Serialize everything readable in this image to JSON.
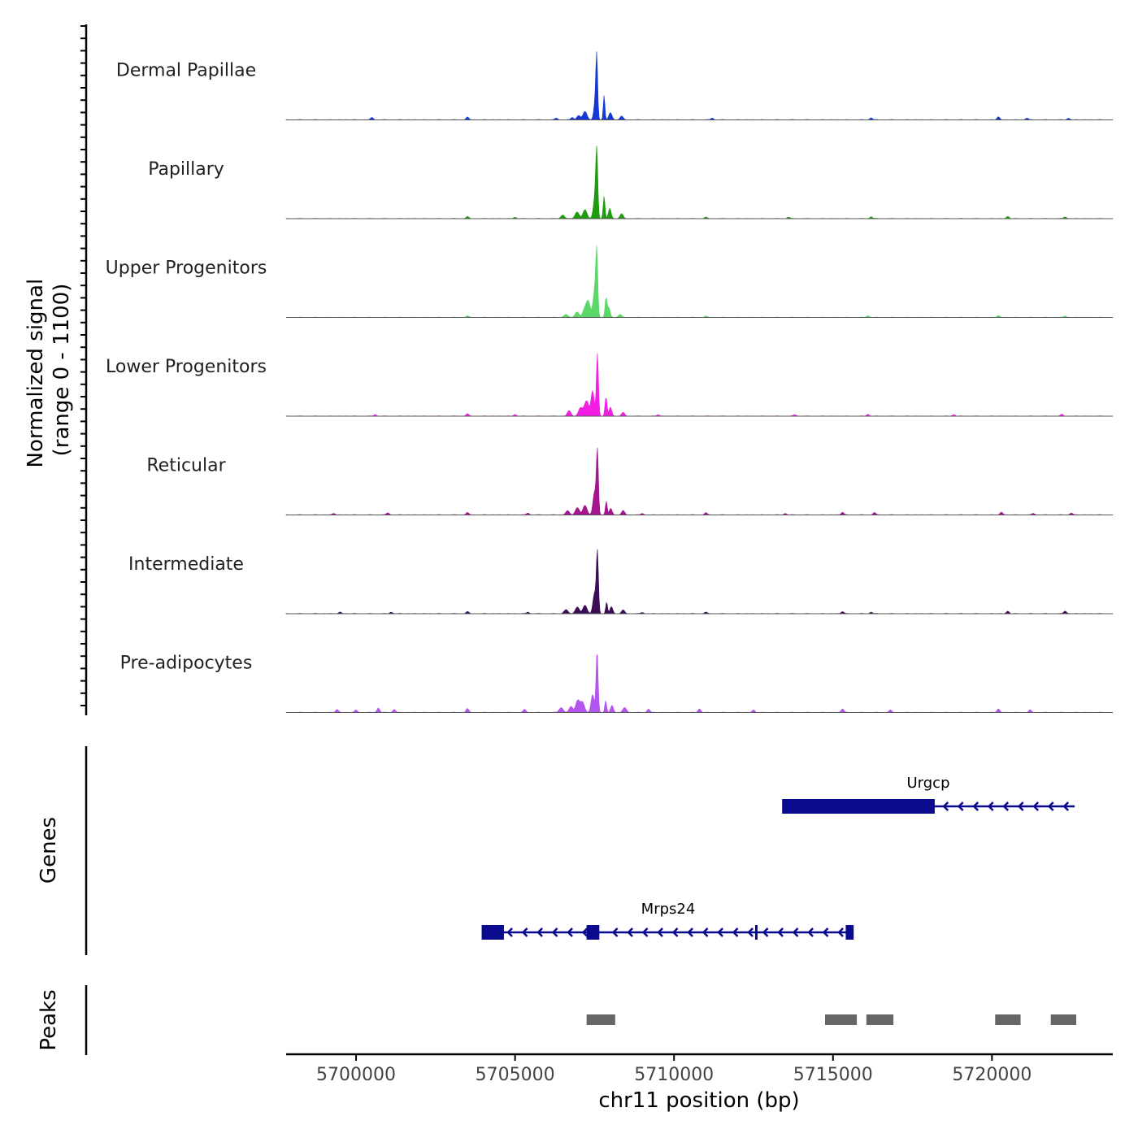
{
  "chart_data": {
    "type": "area",
    "title": "",
    "signal_axis_label": "Normalized signal\n(range 0 - 1100)",
    "signal_range": [
      0,
      1100
    ],
    "xlabel": "chr11 position (bp)",
    "xlim": [
      5697800,
      5723800
    ],
    "x_ticks": [
      5700000,
      5705000,
      5710000,
      5715000,
      5720000
    ],
    "x_tick_labels": [
      "5700000",
      "5705000",
      "5710000",
      "5715000",
      "5720000"
    ],
    "tracks": [
      {
        "name": "Dermal Papillae",
        "color": "#1538d6",
        "peaks": [
          [
            5707570,
            1000,
            40
          ],
          [
            5707520,
            300,
            60
          ],
          [
            5707800,
            420,
            35
          ],
          [
            5707200,
            140,
            90
          ],
          [
            5708000,
            120,
            70
          ],
          [
            5707000,
            70,
            80
          ],
          [
            5708350,
            60,
            70
          ],
          [
            5706800,
            40,
            60
          ]
        ],
        "noise": [
          [
            5700500,
            40
          ],
          [
            5703500,
            45
          ],
          [
            5706300,
            30
          ],
          [
            5711200,
            30
          ],
          [
            5716200,
            35
          ],
          [
            5720200,
            50
          ],
          [
            5721100,
            30
          ],
          [
            5722400,
            25
          ]
        ]
      },
      {
        "name": "Papillary",
        "color": "#1f9b0f",
        "peaks": [
          [
            5707570,
            1070,
            45
          ],
          [
            5707510,
            330,
            70
          ],
          [
            5707800,
            380,
            40
          ],
          [
            5707200,
            150,
            90
          ],
          [
            5707980,
            170,
            60
          ],
          [
            5706950,
            110,
            90
          ],
          [
            5708350,
            80,
            70
          ],
          [
            5706500,
            60,
            80
          ]
        ],
        "noise": [
          [
            5703500,
            35
          ],
          [
            5705000,
            20
          ],
          [
            5711000,
            25
          ],
          [
            5713600,
            25
          ],
          [
            5716200,
            30
          ],
          [
            5720500,
            35
          ],
          [
            5722300,
            30
          ]
        ]
      },
      {
        "name": "Upper Progenitors",
        "color": "#5ad86a",
        "peaks": [
          [
            5707570,
            1050,
            45
          ],
          [
            5707500,
            420,
            70
          ],
          [
            5707860,
            320,
            45
          ],
          [
            5707300,
            280,
            90
          ],
          [
            5707180,
            120,
            80
          ],
          [
            5707950,
            160,
            60
          ],
          [
            5706950,
            90,
            90
          ],
          [
            5708300,
            50,
            70
          ],
          [
            5706600,
            50,
            80
          ]
        ],
        "noise": [
          [
            5703500,
            25
          ],
          [
            5711000,
            20
          ],
          [
            5716100,
            25
          ],
          [
            5720200,
            30
          ],
          [
            5722300,
            25
          ]
        ]
      },
      {
        "name": "Lower Progenitors",
        "color": "#f21ee4",
        "peaks": [
          [
            5707590,
            1060,
            45
          ],
          [
            5707440,
            420,
            70
          ],
          [
            5707860,
            320,
            45
          ],
          [
            5707250,
            260,
            100
          ],
          [
            5707060,
            140,
            90
          ],
          [
            5708000,
            150,
            60
          ],
          [
            5706700,
            90,
            80
          ],
          [
            5708400,
            60,
            70
          ]
        ],
        "noise": [
          [
            5700600,
            25
          ],
          [
            5703500,
            40
          ],
          [
            5705000,
            25
          ],
          [
            5709500,
            25
          ],
          [
            5713800,
            25
          ],
          [
            5716100,
            30
          ],
          [
            5718800,
            25
          ],
          [
            5722200,
            30
          ]
        ]
      },
      {
        "name": "Reticular",
        "color": "#a4158f",
        "peaks": [
          [
            5707590,
            1070,
            45
          ],
          [
            5707500,
            380,
            70
          ],
          [
            5707870,
            230,
            40
          ],
          [
            5707200,
            160,
            90
          ],
          [
            5706960,
            120,
            90
          ],
          [
            5708010,
            110,
            60
          ],
          [
            5706650,
            70,
            80
          ],
          [
            5708400,
            70,
            70
          ]
        ],
        "noise": [
          [
            5699300,
            25
          ],
          [
            5701000,
            35
          ],
          [
            5703500,
            40
          ],
          [
            5705400,
            30
          ],
          [
            5709000,
            25
          ],
          [
            5711000,
            35
          ],
          [
            5713500,
            25
          ],
          [
            5715300,
            45
          ],
          [
            5716300,
            40
          ],
          [
            5720300,
            45
          ],
          [
            5721300,
            25
          ],
          [
            5722500,
            30
          ]
        ]
      },
      {
        "name": "Intermediate",
        "color": "#3a0d56",
        "peaks": [
          [
            5707590,
            1030,
            45
          ],
          [
            5707500,
            340,
            70
          ],
          [
            5707880,
            190,
            40
          ],
          [
            5707200,
            140,
            90
          ],
          [
            5706960,
            110,
            90
          ],
          [
            5708030,
            120,
            60
          ],
          [
            5706600,
            70,
            80
          ],
          [
            5708400,
            60,
            70
          ]
        ],
        "noise": [
          [
            5699500,
            25
          ],
          [
            5701100,
            25
          ],
          [
            5703500,
            35
          ],
          [
            5705400,
            25
          ],
          [
            5709000,
            20
          ],
          [
            5711000,
            25
          ],
          [
            5715300,
            35
          ],
          [
            5716200,
            25
          ],
          [
            5720500,
            40
          ],
          [
            5722300,
            45
          ]
        ]
      },
      {
        "name": "Pre-adipocytes",
        "color": "#b455f0",
        "peaks": [
          [
            5707580,
            1040,
            45
          ],
          [
            5707440,
            300,
            70
          ],
          [
            5707850,
            200,
            40
          ],
          [
            5707120,
            170,
            90
          ],
          [
            5706970,
            200,
            90
          ],
          [
            5706760,
            100,
            80
          ],
          [
            5708050,
            120,
            60
          ],
          [
            5706450,
            80,
            90
          ],
          [
            5708450,
            80,
            80
          ]
        ],
        "noise": [
          [
            5699400,
            50
          ],
          [
            5700000,
            40
          ],
          [
            5700700,
            75
          ],
          [
            5701200,
            50
          ],
          [
            5703500,
            65
          ],
          [
            5705300,
            50
          ],
          [
            5709200,
            55
          ],
          [
            5710800,
            60
          ],
          [
            5712500,
            40
          ],
          [
            5715300,
            60
          ],
          [
            5716800,
            40
          ],
          [
            5720200,
            60
          ],
          [
            5721200,
            40
          ]
        ]
      }
    ],
    "genes_axis_label": "Genes",
    "genes": [
      {
        "name": "Urgcp",
        "strand": "-",
        "start": 5713400,
        "end": 5722600,
        "exons": [
          [
            5713400,
            5718200
          ]
        ],
        "row": 0
      },
      {
        "name": "Mrps24",
        "strand": "-",
        "start": 5703950,
        "end": 5715650,
        "exons": [
          [
            5703950,
            5704650
          ],
          [
            5707250,
            5707650
          ],
          [
            5712550,
            5712620
          ],
          [
            5715400,
            5715650
          ]
        ],
        "row": 1
      }
    ],
    "gene_color": "#0a0a8f",
    "peaks_axis_label": "Peaks",
    "peak_regions": [
      [
        5707250,
        5708150
      ],
      [
        5714750,
        5715750
      ],
      [
        5716050,
        5716900
      ],
      [
        5720100,
        5720900
      ],
      [
        5721850,
        5722650
      ]
    ],
    "peak_color": "#666666"
  }
}
